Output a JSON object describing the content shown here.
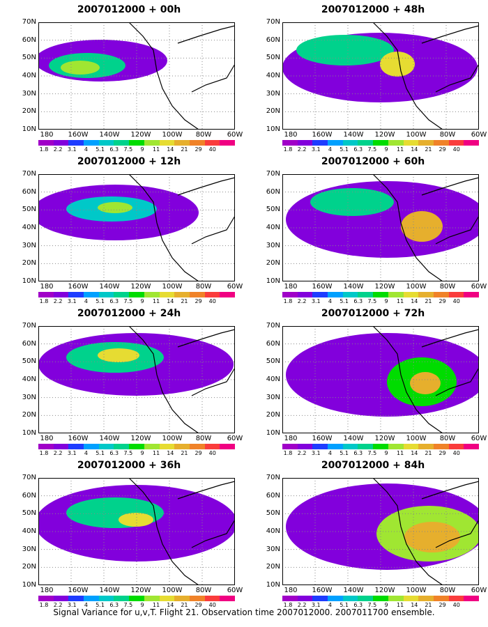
{
  "footer": "Signal Variance for u,v,T. Flight 21. Observation time 2007012000. 2007011700 ensemble.",
  "yticks": [
    "70N",
    "60N",
    "50N",
    "40N",
    "30N",
    "20N",
    "10N"
  ],
  "xticks": [
    "180",
    "160W",
    "140W",
    "120W",
    "100W",
    "80W",
    "60W"
  ],
  "levels": [
    "1.8",
    "2.2",
    "3.1",
    "4",
    "5.1",
    "6.3",
    "7.5",
    "9",
    "11",
    "14",
    "21",
    "29",
    "40"
  ],
  "colors": [
    "#a000c8",
    "#8200dc",
    "#1e3cff",
    "#00a0ff",
    "#00c8c8",
    "#00d28c",
    "#00dc00",
    "#a0e632",
    "#e6dc32",
    "#e6af2d",
    "#f08228",
    "#fa3c3c",
    "#f00082"
  ],
  "panels": [
    {
      "title": "2007012000 + 00h"
    },
    {
      "title": "2007012000 + 48h"
    },
    {
      "title": "2007012000 + 12h"
    },
    {
      "title": "2007012000 + 60h"
    },
    {
      "title": "2007012000 + 24h"
    },
    {
      "title": "2007012000 + 72h"
    },
    {
      "title": "2007012000 + 36h"
    },
    {
      "title": "2007012000 + 84h"
    }
  ]
}
